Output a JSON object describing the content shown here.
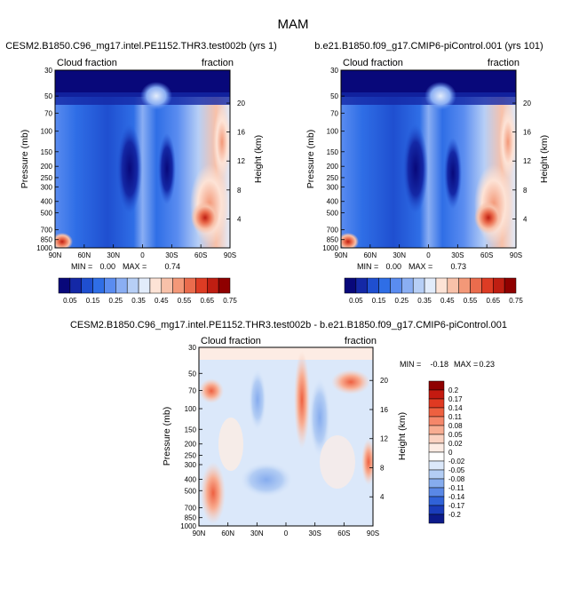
{
  "page_title": "MAM",
  "chart_data": [
    {
      "type": "heatmap",
      "title": "CESM2.B1850.C96_mg17.intel.PE1152.THR3.test002b (yrs 1)",
      "left_label": "Cloud fraction",
      "right_label": "fraction",
      "ylabel": "Pressure (mb)",
      "ylabel_right": "Height (km)",
      "x_ticks": [
        "90N",
        "60N",
        "30N",
        "0",
        "30S",
        "60S",
        "90S"
      ],
      "y_ticks": [
        "1000",
        "850",
        "700",
        "500",
        "400",
        "300",
        "250",
        "200",
        "150",
        "100",
        "70",
        "50",
        "30"
      ],
      "height_ticks": [
        "4",
        "8",
        "12",
        "16",
        "20"
      ],
      "stats": {
        "min_label": "MIN =",
        "min": "0.00",
        "max_label": "MAX =",
        "max": "0.74"
      },
      "xlim": [
        90,
        -90
      ],
      "ylim": [
        1000,
        30
      ]
    },
    {
      "type": "heatmap",
      "title": "b.e21.B1850.f09_g17.CMIP6-piControl.001 (yrs 101)",
      "left_label": "Cloud fraction",
      "right_label": "fraction",
      "ylabel": "Pressure (mb)",
      "ylabel_right": "Height (km)",
      "x_ticks": [
        "90N",
        "60N",
        "30N",
        "0",
        "30S",
        "60S",
        "90S"
      ],
      "y_ticks": [
        "1000",
        "850",
        "700",
        "500",
        "400",
        "300",
        "250",
        "200",
        "150",
        "100",
        "70",
        "50",
        "30"
      ],
      "height_ticks": [
        "4",
        "8",
        "12",
        "16",
        "20"
      ],
      "stats": {
        "min_label": "MIN =",
        "min": "0.00",
        "max_label": "MAX =",
        "max": "0.73"
      },
      "xlim": [
        90,
        -90
      ],
      "ylim": [
        1000,
        30
      ]
    },
    {
      "type": "heatmap",
      "title": "CESM2.B1850.C96_mg17.intel.PE1152.THR3.test002b - b.e21.B1850.f09_g17.CMIP6-piControl.001",
      "left_label": "Cloud fraction",
      "right_label": "fraction",
      "ylabel": "Pressure (mb)",
      "ylabel_right": "Height (km)",
      "x_ticks": [
        "90N",
        "60N",
        "30N",
        "0",
        "30S",
        "60S",
        "90S"
      ],
      "y_ticks": [
        "1000",
        "850",
        "700",
        "500",
        "400",
        "300",
        "250",
        "200",
        "150",
        "100",
        "70",
        "50",
        "30"
      ],
      "height_ticks": [
        "4",
        "8",
        "12",
        "16",
        "20"
      ],
      "stats": {
        "min_label": "MIN =",
        "min": "-0.18",
        "max_label": "MAX =",
        "max": "0.23"
      },
      "xlim": [
        90,
        -90
      ],
      "ylim": [
        1000,
        30
      ]
    }
  ],
  "colorbar_top": {
    "labels": [
      "0.05",
      "0.15",
      "0.25",
      "0.35",
      "0.45",
      "0.55",
      "0.65",
      "0.75"
    ],
    "colors": [
      "#08087a",
      "#1428a6",
      "#1f4fd0",
      "#2f6ee6",
      "#5a8cf0",
      "#8aaef3",
      "#b7cff6",
      "#e2ecfb",
      "#fde3d6",
      "#f8c1a9",
      "#f39878",
      "#ea6c4d",
      "#dd3c24",
      "#bf1e12",
      "#8f0000"
    ]
  },
  "colorbar_diff": {
    "labels": [
      "0.2",
      "0.17",
      "0.14",
      "0.11",
      "0.08",
      "0.05",
      "0.02",
      "0",
      "-0.02",
      "-0.05",
      "-0.08",
      "-0.11",
      "-0.14",
      "-0.17",
      "-0.2"
    ],
    "colors": [
      "#8f0000",
      "#c41a10",
      "#e03a22",
      "#ee6040",
      "#f5876a",
      "#f8ad92",
      "#fbd2c1",
      "#fdece4",
      "#ffffff",
      "#dbe8fa",
      "#b3cdf4",
      "#86acee",
      "#5a88e6",
      "#3062d8",
      "#1a3cba",
      "#0c1a8a"
    ]
  }
}
